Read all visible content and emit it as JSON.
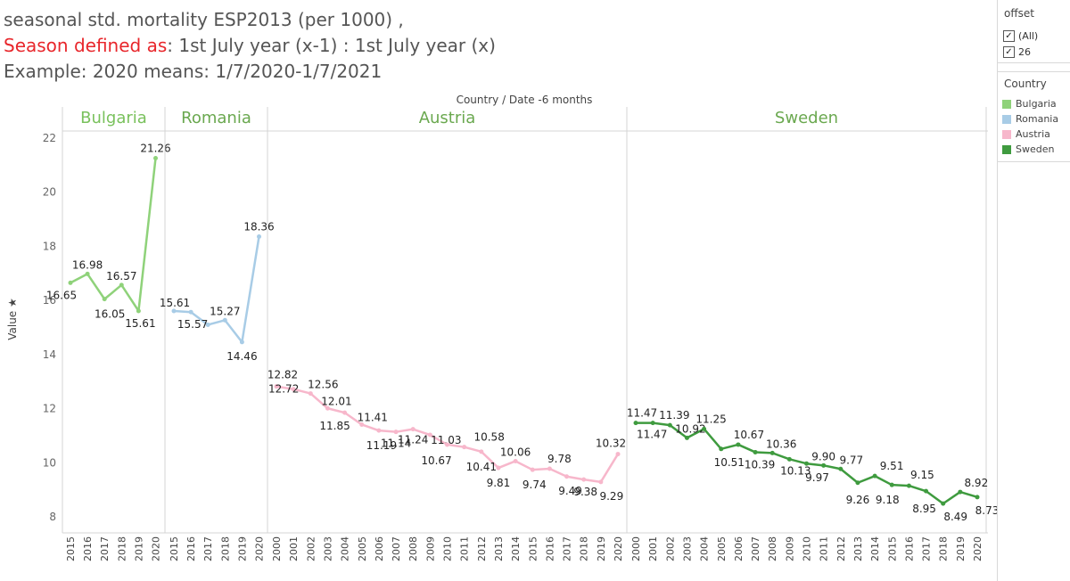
{
  "title": {
    "line1": "seasonal std. mortality ESP2013  (per 1000) ,",
    "line2_red": "Season defined as",
    "line2_rest": ": 1st July year (x-1) : 1st July  year (x)",
    "line3": "Example: 2020 means: 1/7/2020-1/7/2021"
  },
  "filter": {
    "title": "offset",
    "items": [
      {
        "label": "(All)",
        "checked": true
      },
      {
        "label": "26",
        "checked": true
      }
    ]
  },
  "legend": {
    "title": "Country",
    "items": [
      {
        "label": "Bulgaria",
        "color": "#8fd27a"
      },
      {
        "label": "Romania",
        "color": "#a8cce6"
      },
      {
        "label": "Austria",
        "color": "#f7b7cb"
      },
      {
        "label": "Sweden",
        "color": "#3f9b3f"
      }
    ]
  },
  "chart_data": {
    "type": "line",
    "header": "Country / Date -6 months",
    "ylabel": "Value",
    "ylim": [
      7.5,
      22.5
    ],
    "yticks": [
      8,
      10,
      12,
      14,
      16,
      18,
      20,
      22
    ],
    "grid": false,
    "panels": [
      {
        "name": "Bulgaria",
        "color": "#8fd27a",
        "label_color": "#79c15c",
        "x": [
          "2015",
          "2016",
          "2017",
          "2018",
          "2019",
          "2020"
        ],
        "values": [
          16.65,
          16.98,
          16.05,
          16.57,
          15.61,
          21.26
        ]
      },
      {
        "name": "Romania",
        "color": "#a8cce6",
        "label_color": "#6aa84f",
        "x": [
          "2015",
          "2016",
          "2017",
          "2018",
          "2019",
          "2020"
        ],
        "values": [
          15.61,
          15.57,
          15.1,
          15.27,
          14.46,
          18.36
        ],
        "labels": [
          "15.61",
          "15.57",
          "",
          "15.27",
          "14.46",
          "18.36"
        ]
      },
      {
        "name": "Austria",
        "color": "#f7b7cb",
        "label_color": "#6aa84f",
        "x": [
          "2000",
          "2001",
          "2002",
          "2003",
          "2004",
          "2005",
          "2006",
          "2007",
          "2008",
          "2009",
          "2010",
          "2011",
          "2012",
          "2013",
          "2014",
          "2015",
          "2016",
          "2017",
          "2018",
          "2019",
          "2020"
        ],
        "values": [
          12.82,
          12.72,
          12.56,
          12.01,
          11.85,
          11.41,
          11.19,
          11.14,
          11.24,
          11.03,
          10.67,
          10.58,
          10.41,
          9.81,
          10.06,
          9.74,
          9.78,
          9.49,
          9.38,
          9.29,
          10.32
        ]
      },
      {
        "name": "Sweden",
        "color": "#3f9b3f",
        "label_color": "#6aa84f",
        "x": [
          "2000",
          "2001",
          "2002",
          "2003",
          "2004",
          "2005",
          "2006",
          "2007",
          "2008",
          "2009",
          "2010",
          "2011",
          "2012",
          "2013",
          "2014",
          "2015",
          "2016",
          "2017",
          "2018",
          "2019",
          "2020"
        ],
        "values": [
          11.47,
          11.47,
          11.39,
          10.92,
          11.25,
          10.51,
          10.67,
          10.39,
          10.36,
          10.13,
          9.97,
          9.9,
          9.77,
          9.26,
          9.51,
          9.18,
          9.15,
          8.95,
          8.49,
          8.92,
          8.73
        ]
      }
    ]
  }
}
